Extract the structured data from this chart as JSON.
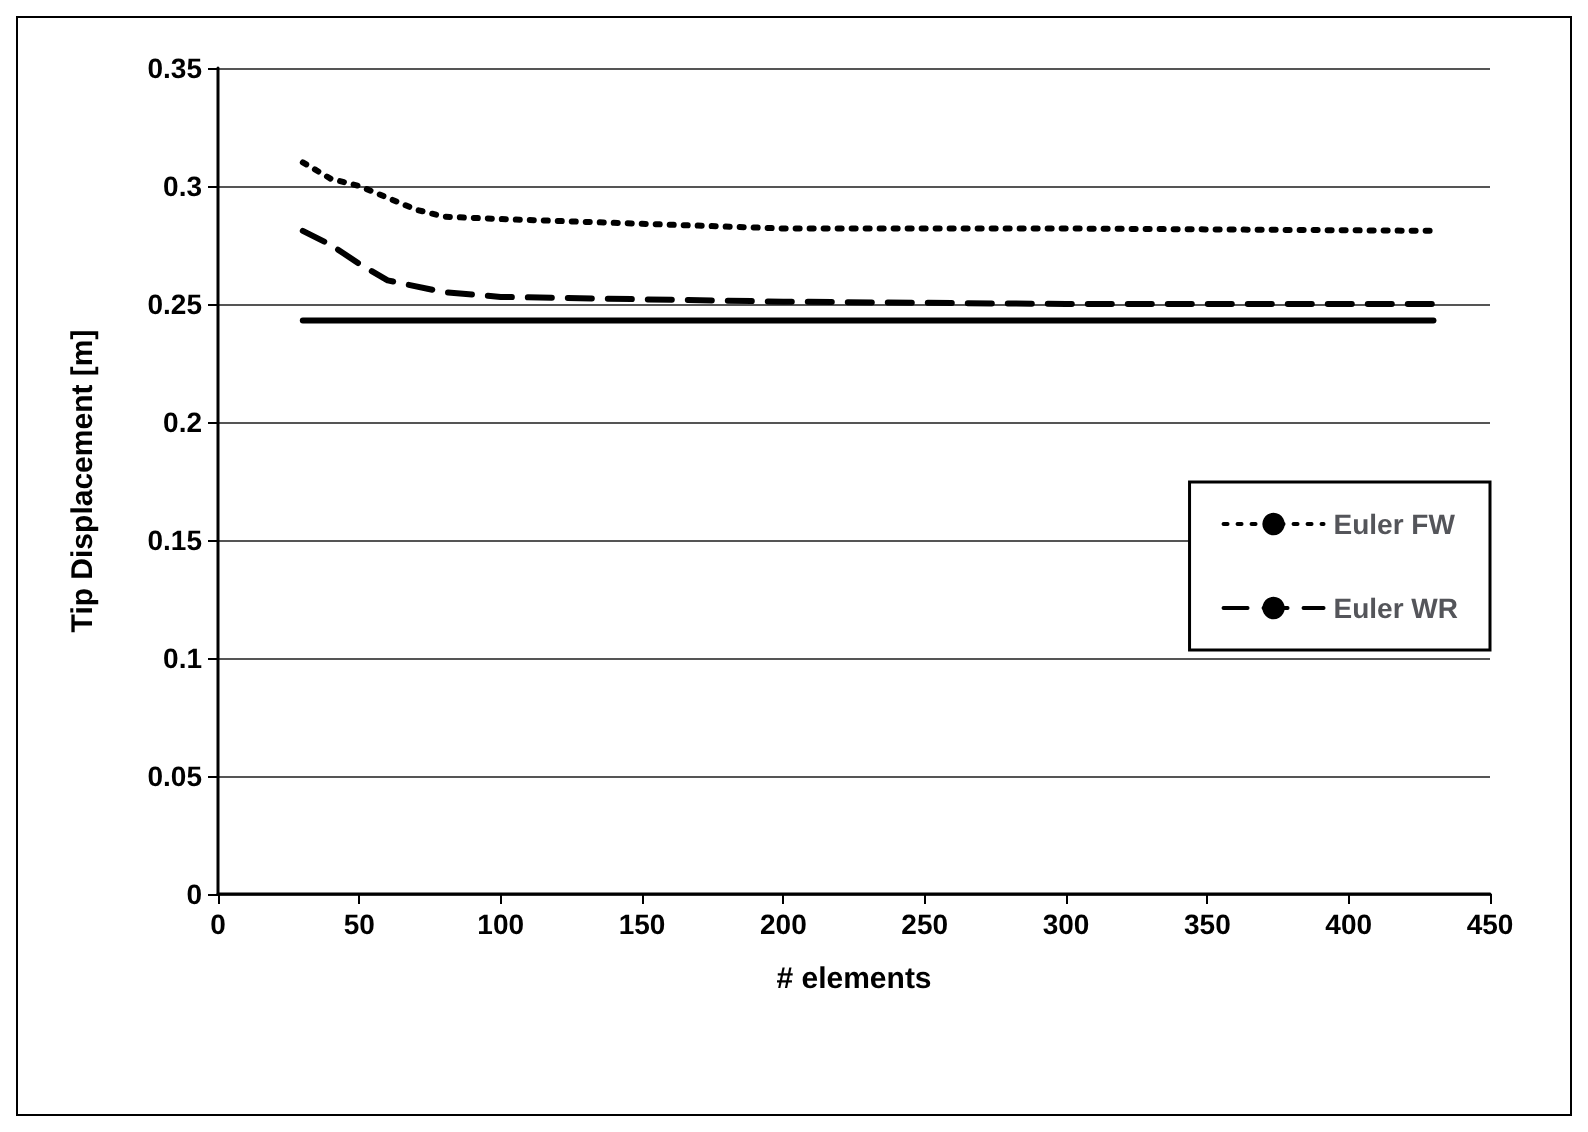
{
  "chart_data": {
    "type": "line",
    "xlabel": "# elements",
    "ylabel": "Tip Displacement [m]",
    "xlim": [
      0,
      450
    ],
    "xticks": [
      0,
      50,
      100,
      150,
      200,
      250,
      300,
      350,
      400,
      450
    ],
    "ylim": [
      0,
      0.35
    ],
    "yticks": [
      0,
      0.05,
      0.1,
      0.15,
      0.2,
      0.25,
      0.3,
      0.35
    ],
    "grid": "y",
    "legend": "right",
    "marker": "none",
    "series": [
      {
        "name": "Euler FW",
        "color": "#000000",
        "line_style": "dotted",
        "x": [
          30,
          40,
          50,
          60,
          70,
          80,
          100,
          150,
          200,
          300,
          430
        ],
        "values": [
          0.31,
          0.303,
          0.3,
          0.295,
          0.29,
          0.287,
          0.286,
          0.284,
          0.282,
          0.282,
          0.281
        ]
      },
      {
        "name": "Euler WR",
        "color": "#000000",
        "line_style": "dashed",
        "x": [
          30,
          40,
          50,
          60,
          80,
          100,
          150,
          200,
          300,
          430
        ],
        "values": [
          0.281,
          0.275,
          0.267,
          0.26,
          0.255,
          0.253,
          0.252,
          0.251,
          0.25,
          0.25
        ]
      },
      {
        "color": "#000000",
        "line_style": "solid",
        "x": [
          30,
          430
        ],
        "values": [
          0.243,
          0.243
        ]
      }
    ]
  }
}
